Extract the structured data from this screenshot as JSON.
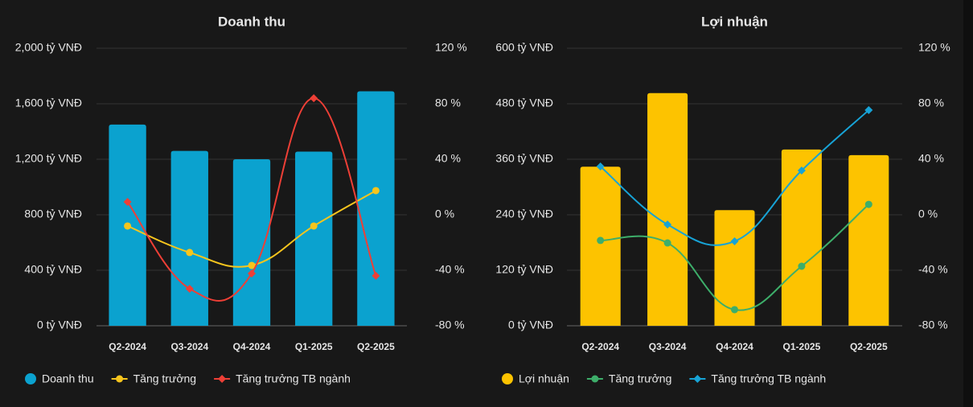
{
  "chart_data": [
    {
      "type": "combo",
      "title": "Doanh thu",
      "categories": [
        "Q2-2024",
        "Q3-2024",
        "Q4-2024",
        "Q1-2025",
        "Q2-2025"
      ],
      "ylim": [
        0,
        2000
      ],
      "yticks": [
        {
          "value": 0,
          "label": "0 tỷ VNĐ"
        },
        {
          "value": 400,
          "label": "400 tỷ VNĐ"
        },
        {
          "value": 800,
          "label": "800 tỷ VNĐ"
        },
        {
          "value": 1200,
          "label": "1,200 tỷ VNĐ"
        },
        {
          "value": 1600,
          "label": "1,600 tỷ VNĐ"
        },
        {
          "value": 2000,
          "label": "2,000 tỷ VNĐ"
        }
      ],
      "y2lim": [
        -80,
        120
      ],
      "y2ticks": [
        {
          "value": -80,
          "label": "-80 %"
        },
        {
          "value": -40,
          "label": "-40 %"
        },
        {
          "value": 0,
          "label": "0 %"
        },
        {
          "value": 40,
          "label": "40 %"
        },
        {
          "value": 80,
          "label": "80 %"
        },
        {
          "value": 120,
          "label": "120 %"
        }
      ],
      "grid": true,
      "series": [
        {
          "name": "Doanh thu",
          "type": "bar",
          "color": "#0ba2cf",
          "values": [
            1450,
            1260,
            1200,
            1255,
            1690
          ]
        },
        {
          "name": "Tăng trưởng",
          "type": "line",
          "axis": "y2",
          "color": "#f7c51d",
          "marker": "circle",
          "values": [
            -8.1,
            -27.2,
            -36.5,
            -8.1,
            17.4
          ]
        },
        {
          "name": "Tăng trưởng TB ngành",
          "type": "line",
          "axis": "y2",
          "color": "#ee3f36",
          "marker": "diamond",
          "values": [
            9.3,
            -53.3,
            -42.3,
            84,
            -44
          ]
        }
      ]
    },
    {
      "type": "combo",
      "title": "Lợi nhuận",
      "categories": [
        "Q2-2024",
        "Q3-2024",
        "Q4-2024",
        "Q1-2025",
        "Q2-2025"
      ],
      "ylim": [
        0,
        600
      ],
      "yticks": [
        {
          "value": 0,
          "label": "0 tỷ VNĐ"
        },
        {
          "value": 120,
          "label": "120 tỷ VNĐ"
        },
        {
          "value": 240,
          "label": "240 tỷ VNĐ"
        },
        {
          "value": 360,
          "label": "360 tỷ VNĐ"
        },
        {
          "value": 480,
          "label": "480 tỷ VNĐ"
        },
        {
          "value": 600,
          "label": "600 tỷ VNĐ"
        }
      ],
      "y2lim": [
        -80,
        120
      ],
      "y2ticks": [
        {
          "value": -80,
          "label": "-80 %"
        },
        {
          "value": -40,
          "label": "-40 %"
        },
        {
          "value": 0,
          "label": "0 %"
        },
        {
          "value": 40,
          "label": "40 %"
        },
        {
          "value": 80,
          "label": "80 %"
        },
        {
          "value": 120,
          "label": "120 %"
        }
      ],
      "grid": true,
      "series": [
        {
          "name": "Lợi nhuận",
          "type": "bar",
          "color": "#fdc300",
          "values": [
            344,
            503,
            250,
            381,
            369
          ]
        },
        {
          "name": "Tăng trưởng",
          "type": "line",
          "axis": "y2",
          "color": "#3dae6a",
          "marker": "circle",
          "values": [
            -18.5,
            -20.3,
            -68.4,
            -37.1,
            7.5
          ]
        },
        {
          "name": "Tăng trưởng TB ngành",
          "type": "line",
          "axis": "y2",
          "color": "#17a3d6",
          "marker": "diamond",
          "values": [
            34.8,
            -7,
            -19.1,
            31.9,
            75.4
          ]
        }
      ]
    }
  ]
}
